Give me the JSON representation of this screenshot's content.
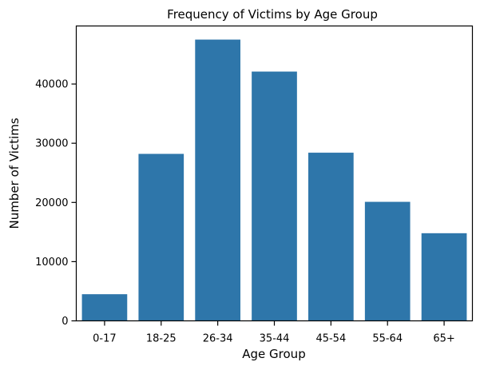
{
  "chart_data": {
    "type": "bar",
    "title": "Frequency of Victims by Age Group",
    "xlabel": "Age Group",
    "ylabel": "Number of Victims",
    "categories": [
      "0-17",
      "18-25",
      "26-34",
      "35-44",
      "45-54",
      "55-64",
      "65+"
    ],
    "values": [
      4500,
      28200,
      47500,
      42100,
      28400,
      20100,
      14800
    ],
    "ylim": [
      0,
      49800
    ],
    "yticks": [
      0,
      10000,
      20000,
      30000,
      40000
    ],
    "ytick_labels": [
      "0",
      "10000",
      "20000",
      "30000",
      "40000"
    ],
    "grid": false,
    "colors": {
      "bar": "#2e76aa",
      "axis": "#000000",
      "background": "#ffffff"
    }
  }
}
